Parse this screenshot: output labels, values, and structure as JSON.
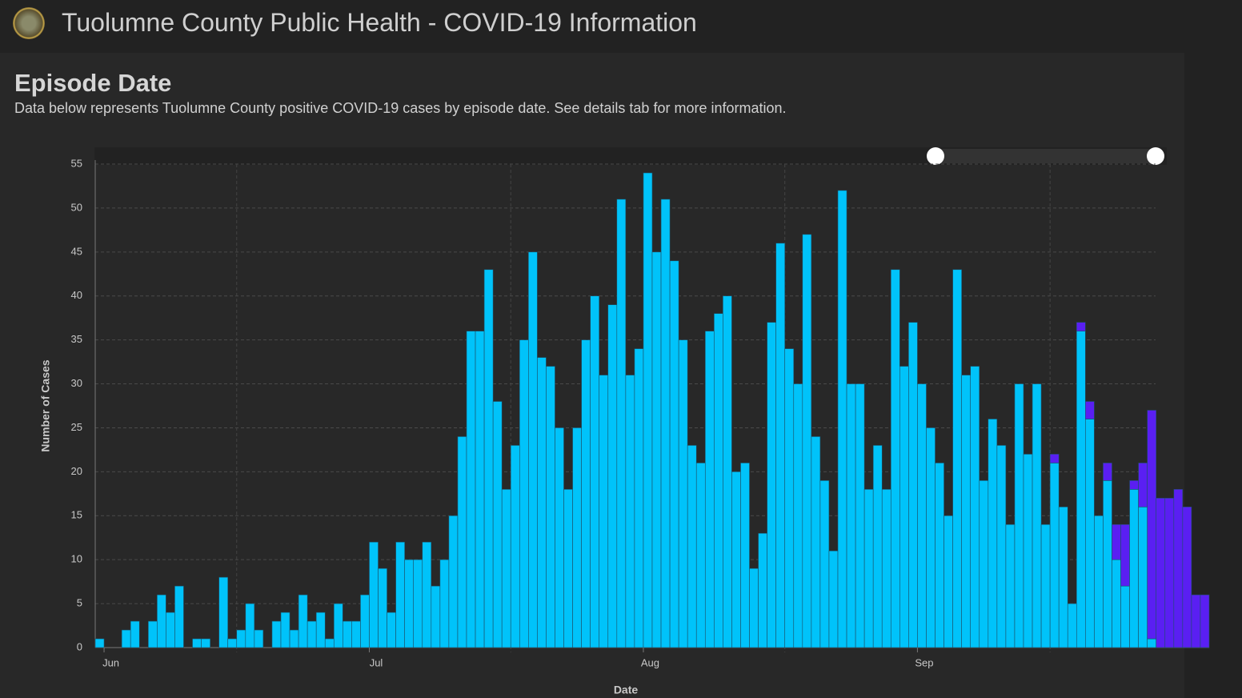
{
  "header": {
    "title": "Tuolumne County Public Health - COVID-19 Information"
  },
  "chart_data": {
    "type": "bar",
    "title": "Episode Date",
    "subtitle": "Data below represents Tuolumne County positive COVID-19 cases by episode date. See details tab for more information.",
    "x_label": "Date",
    "y_label": "Number of Cases",
    "stacked": true,
    "grid": true,
    "ylim": [
      0,
      55
    ],
    "yticks": [
      0,
      5,
      10,
      15,
      20,
      25,
      30,
      35,
      40,
      45,
      50,
      55
    ],
    "categories": [
      null,
      "Jun",
      null,
      null,
      null,
      null,
      null,
      null,
      null,
      null,
      null,
      null,
      null,
      null,
      null,
      null,
      null,
      null,
      null,
      null,
      null,
      null,
      null,
      null,
      null,
      null,
      null,
      null,
      null,
      null,
      null,
      "Jul",
      null,
      null,
      null,
      null,
      null,
      null,
      null,
      null,
      null,
      null,
      null,
      null,
      null,
      null,
      null,
      null,
      null,
      null,
      null,
      null,
      null,
      null,
      null,
      null,
      null,
      null,
      null,
      null,
      null,
      null,
      "Aug",
      null,
      null,
      null,
      null,
      null,
      null,
      null,
      null,
      null,
      null,
      null,
      null,
      null,
      null,
      null,
      null,
      null,
      null,
      null,
      null,
      null,
      null,
      null,
      null,
      null,
      null,
      null,
      null,
      null,
      null,
      "Sep",
      null,
      null,
      null,
      null,
      null,
      null,
      null,
      null,
      null,
      null,
      null,
      null,
      null,
      null,
      null,
      null,
      null,
      null,
      null,
      null,
      null,
      null,
      null,
      null,
      null,
      null,
      null,
      null,
      null,
      null,
      null,
      null
    ],
    "series": [
      {
        "color": "#00c3fa",
        "values": [
          1,
          0,
          0,
          2,
          3,
          0,
          3,
          6,
          4,
          7,
          0,
          1,
          1,
          0,
          8,
          1,
          2,
          5,
          2,
          0,
          3,
          4,
          2,
          6,
          3,
          4,
          1,
          5,
          3,
          3,
          6,
          12,
          9,
          4,
          12,
          10,
          10,
          12,
          7,
          10,
          15,
          24,
          36,
          36,
          43,
          28,
          18,
          23,
          35,
          45,
          33,
          32,
          25,
          18,
          25,
          35,
          40,
          31,
          39,
          51,
          31,
          34,
          54,
          45,
          51,
          44,
          35,
          23,
          21,
          36,
          38,
          40,
          20,
          21,
          9,
          13,
          37,
          46,
          34,
          30,
          47,
          24,
          19,
          11,
          52,
          30,
          30,
          18,
          23,
          18,
          43,
          32,
          37,
          30,
          25,
          21,
          15,
          43,
          31,
          32,
          19,
          26,
          23,
          14,
          30,
          22,
          30,
          14,
          21,
          16,
          5,
          36,
          26,
          15,
          19,
          10,
          7,
          18,
          16,
          1,
          0,
          0,
          0,
          0,
          0,
          0
        ]
      },
      {
        "color": "#5a1ff2",
        "values": [
          0,
          0,
          0,
          0,
          0,
          0,
          0,
          0,
          0,
          0,
          0,
          0,
          0,
          0,
          0,
          0,
          0,
          0,
          0,
          0,
          0,
          0,
          0,
          0,
          0,
          0,
          0,
          0,
          0,
          0,
          0,
          0,
          0,
          0,
          0,
          0,
          0,
          0,
          0,
          0,
          0,
          0,
          0,
          0,
          0,
          0,
          0,
          0,
          0,
          0,
          0,
          0,
          0,
          0,
          0,
          0,
          0,
          0,
          0,
          0,
          0,
          0,
          0,
          0,
          0,
          0,
          0,
          0,
          0,
          0,
          0,
          0,
          0,
          0,
          0,
          0,
          0,
          0,
          0,
          0,
          0,
          0,
          0,
          0,
          0,
          0,
          0,
          0,
          0,
          0,
          0,
          0,
          0,
          0,
          0,
          0,
          0,
          0,
          0,
          0,
          0,
          0,
          0,
          0,
          0,
          0,
          0,
          0,
          1,
          0,
          0,
          1,
          2,
          0,
          2,
          4,
          7,
          1,
          5,
          26,
          17,
          17,
          18,
          16,
          6,
          6
        ]
      }
    ]
  }
}
